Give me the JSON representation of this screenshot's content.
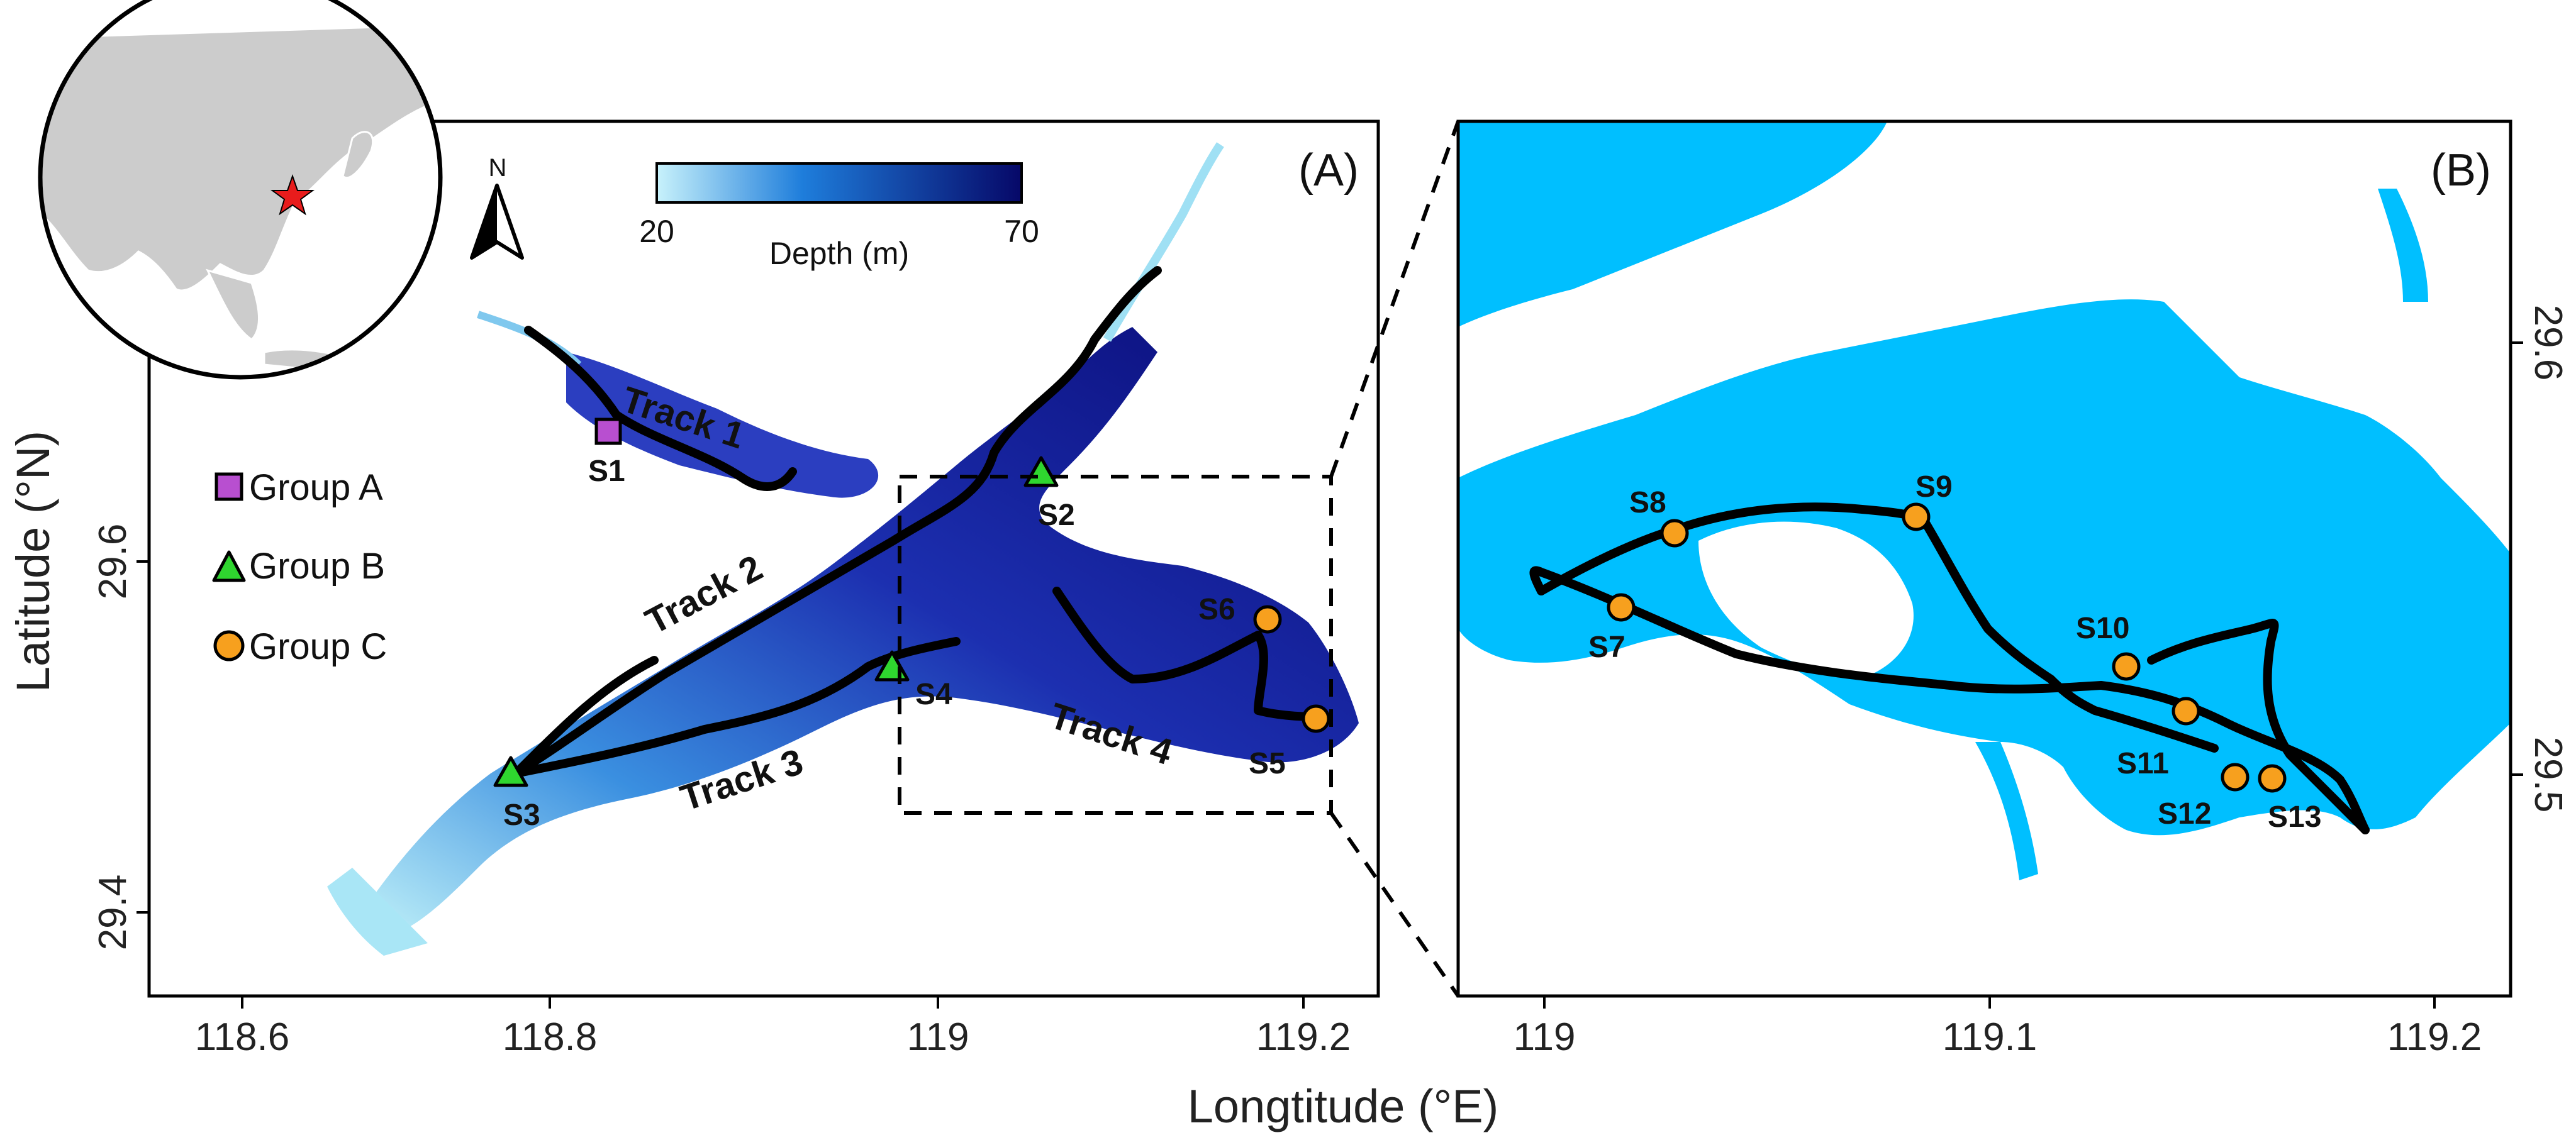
{
  "panel_a": {
    "label": "(A)",
    "x_ticks": [
      "118.6",
      "118.8",
      "119",
      "119.2"
    ],
    "y_ticks": [
      "29.6",
      "29.4"
    ],
    "y_axis_label": "Latitude (°N)",
    "north_arrow": "N",
    "colorbar": {
      "min": "20",
      "max": "70",
      "label": "Depth (m)"
    },
    "legend": [
      {
        "label": "Group A",
        "shape": "square",
        "color": "#b84fd0"
      },
      {
        "label": "Group B",
        "shape": "triangle",
        "color": "#2fd62f"
      },
      {
        "label": "Group C",
        "shape": "circle",
        "color": "#f7a01e"
      }
    ],
    "tracks": [
      "Track 1",
      "Track 2",
      "Track 3",
      "Track 4"
    ],
    "stations": [
      "S1",
      "S2",
      "S3",
      "S4",
      "S5",
      "S6"
    ]
  },
  "panel_b": {
    "label": "(B)",
    "x_ticks": [
      "119",
      "119.1",
      "119.2"
    ],
    "y_ticks": [
      "29.6",
      "29.5"
    ],
    "stations": [
      "S7",
      "S8",
      "S9",
      "S10",
      "S11",
      "S12",
      "S13"
    ]
  },
  "x_axis_label": "Longtitude (°E)",
  "colors": {
    "water_b": "#00bfff",
    "depth_shallow": "#bdf0fa",
    "depth_deep": "#0a0a6e",
    "land_globe": "#cccccc"
  }
}
